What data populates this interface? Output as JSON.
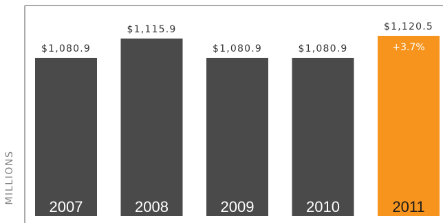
{
  "chart_data": {
    "type": "bar",
    "categories": [
      "2007",
      "2008",
      "2009",
      "2010",
      "2011"
    ],
    "values": [
      1080.9,
      1115.9,
      1080.9,
      1080.9,
      1120.5
    ],
    "value_labels": [
      "$1,080.9",
      "$1,115.9",
      "$1,080.9",
      "$1,080.9",
      "$1,120.5"
    ],
    "annotations": [
      {
        "category": "2011",
        "text": "+3.7%"
      }
    ],
    "title": "",
    "xlabel": "",
    "ylabel": "MILLIONS",
    "grid": false,
    "legend": "none",
    "colors": {
      "bar": "#4a4a4b",
      "highlight": "#f7941d",
      "year_text": "#ffffff",
      "highlight_year_text": "#1a1a1a",
      "value_text": "#333333",
      "annotation_text": "#ffffff",
      "axis": "#aaaaaa"
    }
  }
}
